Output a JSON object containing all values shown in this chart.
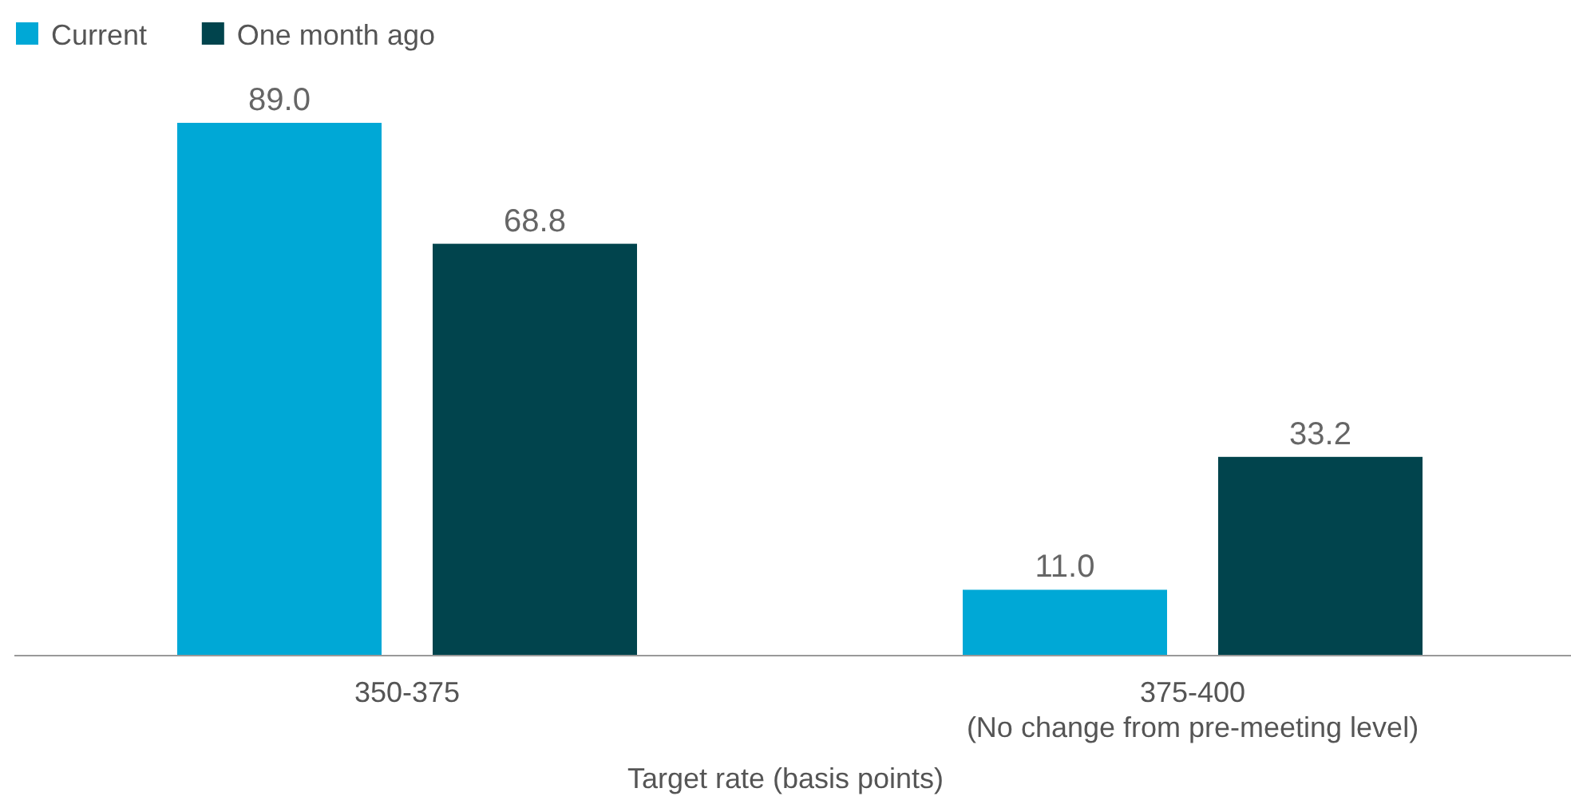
{
  "chart_data": {
    "type": "bar",
    "xlabel": "Target rate (basis points)",
    "categories": [
      "350-375",
      "375-400\n(No change from pre-meeting level)"
    ],
    "series": [
      {
        "name": "Current",
        "color": "#00a8d6",
        "values": [
          89.0,
          11.0
        ],
        "value_labels": [
          "89.0",
          "11.0"
        ]
      },
      {
        "name": "One month ago",
        "color": "#01444d",
        "values": [
          68.8,
          33.2
        ],
        "value_labels": [
          "68.8",
          "33.2"
        ]
      }
    ],
    "legend": "top left"
  }
}
